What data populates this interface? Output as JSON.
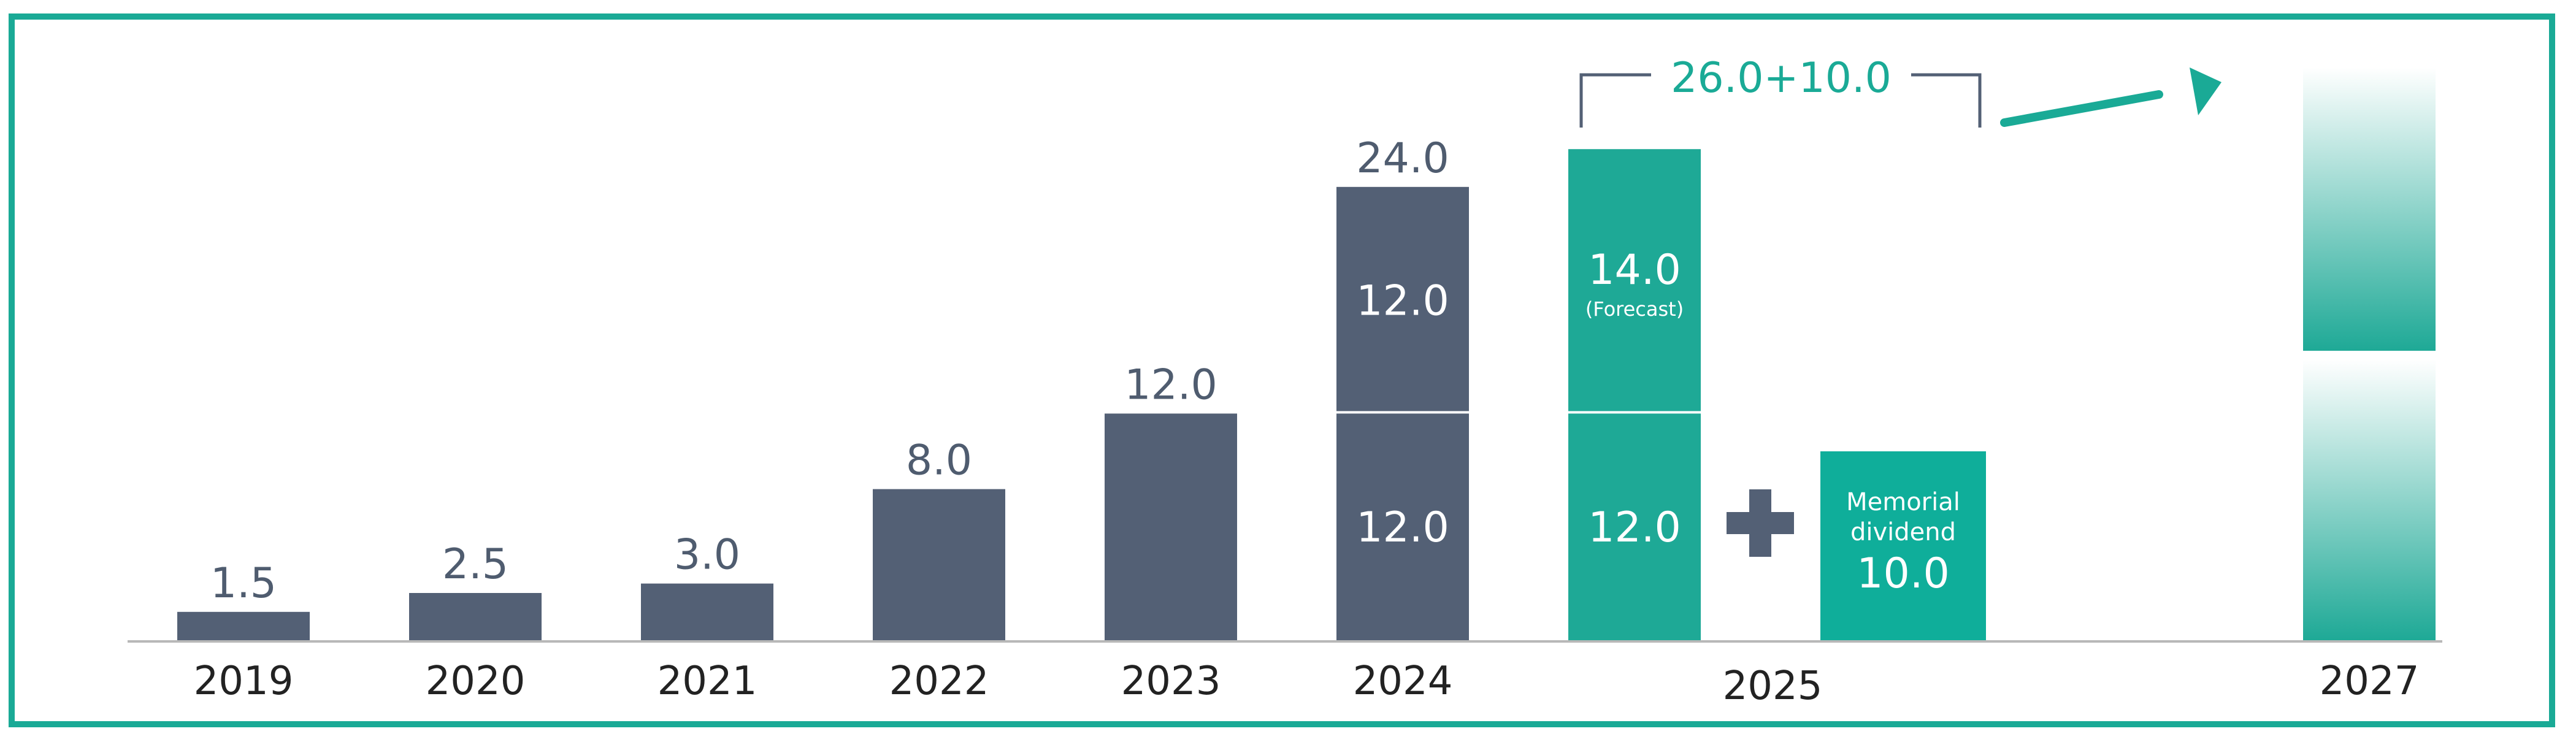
{
  "colors": {
    "past": "#536075",
    "forecast": "#1ea996",
    "memorial": "#0fae9a",
    "accent": "#1aaa96",
    "value_text": "#4f5c6f",
    "axis": "#b8b8b8",
    "frame": "#1aaa96"
  },
  "chart_data": {
    "type": "bar",
    "stacked": true,
    "categories": [
      "2019",
      "2020",
      "2021",
      "2022",
      "2023",
      "2024",
      "2025",
      "2027"
    ],
    "ylim": [
      0,
      26.5
    ],
    "series": [
      {
        "values": [
          1.5,
          2.5,
          3.0,
          8.0,
          12.0,
          12.0,
          12.0,
          null
        ]
      },
      {
        "values": [
          null,
          null,
          null,
          null,
          null,
          12.0,
          14.0,
          null
        ]
      }
    ],
    "totals": [
      "1.5",
      "2.5",
      "3.0",
      "8.0",
      "12.0",
      "24.0",
      null,
      null
    ],
    "segment_labels": {
      "2024": [
        "12.0",
        "12.0"
      ],
      "2025": [
        "12.0",
        "14.0"
      ]
    },
    "forecast_label": "(Forecast)",
    "plus_icon": "plus-icon",
    "memorial_dividend": {
      "label_line1": "Memorial",
      "label_line2": "dividend",
      "value": 10.0,
      "value_label": "10.0"
    },
    "total_2025_label": "26.0+10.0",
    "trend_arrow": "arrow-right-up-icon",
    "future_2027": "gradient-bar"
  }
}
